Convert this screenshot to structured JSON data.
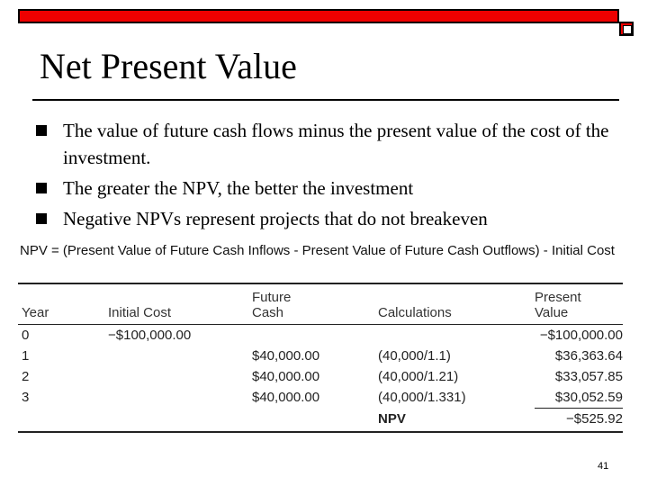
{
  "slide": {
    "title": "Net Present Value",
    "page_number": "41"
  },
  "bullets": [
    "The value of future cash flows minus the present value of the cost of the investment.",
    "The greater the NPV, the better the investment",
    "Negative NPVs represent projects that do not breakeven"
  ],
  "formula": "NPV = (Present Value of Future Cash Inflows - Present Value of Future Cash Outflows) - Initial Cost",
  "table": {
    "headers": {
      "year": "Year",
      "initial_cost": "Initial Cost",
      "future_cash": "Future\nCash",
      "calculations": "Calculations",
      "present_value": "Present\nValue"
    },
    "rows": [
      {
        "year": "0",
        "initial_cost": "−$100,000.00",
        "future_cash": "",
        "calculations": "",
        "present_value": "−$100,000.00"
      },
      {
        "year": "1",
        "initial_cost": "",
        "future_cash": "$40,000.00",
        "calculations": "(40,000/1.1)",
        "present_value": "$36,363.64"
      },
      {
        "year": "2",
        "initial_cost": "",
        "future_cash": "$40,000.00",
        "calculations": "(40,000/1.21)",
        "present_value": "$33,057.85"
      },
      {
        "year": "3",
        "initial_cost": "",
        "future_cash": "$40,000.00",
        "calculations": "(40,000/1.331)",
        "present_value": "$30,052.59"
      }
    ],
    "total": {
      "label": "NPV",
      "value": "−$525.92"
    }
  },
  "colors": {
    "accent_bar": "#ee0000"
  }
}
